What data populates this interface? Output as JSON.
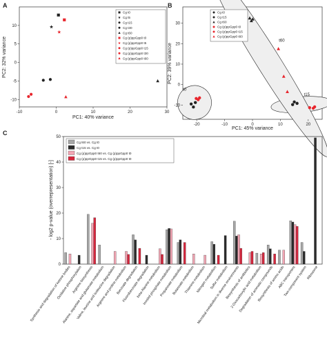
{
  "panels": {
    "A": {
      "letter": "A",
      "xlabel": "PC1: 40% variance",
      "ylabel": "PC2: 32% variance",
      "xlim": [
        -10,
        30
      ],
      "ylim": [
        -12,
        15
      ],
      "xticks": [
        -10,
        0,
        10,
        20,
        30
      ],
      "yticks": [
        -10,
        -5,
        0,
        5,
        10
      ],
      "legend_placement": "top-right",
      "series": [
        {
          "name": "Cg t0",
          "marker": "square",
          "color": "#222222",
          "points": [
            [
              0.6,
              12.8
            ]
          ]
        },
        {
          "name": "Cg t5",
          "marker": "star",
          "color": "#222222",
          "points": [
            [
              -1.3,
              9.6
            ]
          ]
        },
        {
          "name": "Cg t15",
          "marker": "circle",
          "color": "#222222",
          "points": [
            [
              -3.5,
              -4.8
            ]
          ]
        },
        {
          "name": "Cg t30",
          "marker": "circle",
          "color": "#222222",
          "points": [
            [
              -1.6,
              -4.6
            ]
          ]
        },
        {
          "name": "Cg t60",
          "marker": "triangle",
          "color": "#222222",
          "points": [
            [
              27.5,
              -5.0
            ]
          ]
        },
        {
          "name": "Cg (p)ppGpp0 t0",
          "marker": "square",
          "color": "#e8262d",
          "points": [
            [
              2.2,
              11.5
            ]
          ]
        },
        {
          "name": "Cg (p)ppGpp0 t5",
          "marker": "star",
          "color": "#e8262d",
          "points": [
            [
              0.8,
              8.2
            ]
          ]
        },
        {
          "name": "Cg (p)ppGpp0 t15",
          "marker": "circle",
          "color": "#e8262d",
          "points": [
            [
              -7.5,
              -9.2
            ]
          ]
        },
        {
          "name": "Cg (p)ppGpp0 t30",
          "marker": "circle",
          "color": "#e8262d",
          "points": [
            [
              -6.8,
              -8.6
            ]
          ]
        },
        {
          "name": "Cg (p)ppGpp0 t60",
          "marker": "triangle",
          "color": "#e8262d",
          "points": [
            [
              2.6,
              -9.3
            ]
          ]
        }
      ]
    },
    "B": {
      "letter": "B",
      "xlabel": "PC1: 45% variance",
      "ylabel": "PC2: 39% variance",
      "xlim": [
        -25,
        25
      ],
      "ylim": [
        -17,
        38
      ],
      "xticks": [
        -20,
        -10,
        0,
        10,
        20
      ],
      "yticks": [
        -10,
        0,
        10,
        20,
        30
      ],
      "legend_placement": "top-left",
      "series": [
        {
          "name": "Cg t0",
          "marker": "circle",
          "color": "#222222",
          "points": [
            [
              -22,
              -9.5
            ],
            [
              -21.2,
              -11
            ],
            [
              -20.5,
              -8.8
            ]
          ]
        },
        {
          "name": "Cg t15",
          "marker": "circle",
          "color": "#222222",
          "points": [
            [
              15,
              -8.5
            ],
            [
              16,
              -9.2
            ],
            [
              14.4,
              -9.8
            ]
          ]
        },
        {
          "name": "Cg t60",
          "marker": "triangle",
          "color": "#222222",
          "points": [
            [
              -1,
              32.5
            ],
            [
              0.1,
              32.0
            ],
            [
              -0.4,
              31.2
            ]
          ]
        },
        {
          "name": "Cg (p)ppGpp0 t0",
          "marker": "circle",
          "color": "#e8262d",
          "points": [
            [
              -20.2,
              -6.8
            ],
            [
              -19.5,
              -7.4
            ],
            [
              -19.0,
              -6.5
            ]
          ]
        },
        {
          "name": "Cg (p)ppGpp0 t15",
          "marker": "circle",
          "color": "#e8262d",
          "points": [
            [
              20.5,
              -11.3
            ],
            [
              21.8,
              -11.6
            ],
            [
              22.3,
              -10.9
            ]
          ]
        },
        {
          "name": "Cg (p)ppGpp0 t60",
          "marker": "triangle",
          "color": "#e8262d",
          "points": [
            [
              9.3,
              17.5
            ],
            [
              11.2,
              4.0
            ],
            [
              12.5,
              -3.5
            ]
          ]
        }
      ],
      "annotations": [
        {
          "text": "t60",
          "x": 10.5,
          "y": 21
        },
        {
          "text": "t0",
          "x": -24.3,
          "y": -3
        },
        {
          "text": "t15",
          "x": 19.5,
          "y": -5.5
        }
      ]
    },
    "C": {
      "letter": "C",
      "type": "bar",
      "ylabel": "- log2 p-value (overrepresentation) [-]",
      "ylim": [
        0,
        50
      ],
      "yticks": [
        0,
        10,
        20,
        30,
        40,
        50
      ],
      "legend": [
        {
          "name": "Cg t60 vs. Cg t0",
          "color": "#a6a6a6"
        },
        {
          "name": "Cg t15 vs. Cg t0",
          "color": "#2b2b2b"
        },
        {
          "name": "Cg (p)ppGpp0 t60 vs. Cg (p)ppGpp0 t0",
          "color": "#f2a6b4"
        },
        {
          "name": "Cg (p)ppGpp0 t15 vs. Cg (p)ppGpp0 t0",
          "color": "#d7263d"
        }
      ],
      "categories": [
        "Synthesis and degradation of ketone bodies",
        "Oxidative phosphorylation",
        "Arginine biosynthesis",
        "Alanine, aspartate and glutamate metabolism",
        "Valine, leucine and isoleucine degradation",
        "Arginine and proline metabolism",
        "Benzoate degradation",
        "Fluorobenzoate degradation",
        "beta-Alanine metabolism",
        "Inositol phosphate metabolism",
        "Propanoate metabolism",
        "Butanoate metabolism",
        "Thiamine metabolism",
        "Nitrogen metabolism",
        "Sulfur metabolism",
        "Microbial metabolism in diverse environments",
        "Biosynthesis of antibiotics",
        "2-Oxocarboxylic acid metabolism",
        "Degradation of aromatic compounds",
        "Biosynthesis of amino acids",
        "ABC transporters",
        "Two-component system",
        "Ribosome"
      ],
      "series": [
        {
          "name": "Cg t60 vs. Cg t0",
          "color": "#a6a6a6",
          "values": [
            4.5,
            0,
            19.5,
            7.5,
            0,
            0,
            11.5,
            0,
            0,
            13.5,
            8.5,
            0,
            0,
            8.8,
            0,
            16.8,
            0,
            4.3,
            7.5,
            5.5,
            17.0,
            8.5,
            0
          ]
        },
        {
          "name": "Cg t15 vs. Cg t0",
          "color": "#2b2b2b",
          "values": [
            0,
            3.5,
            0,
            0,
            0,
            0,
            9.5,
            3.5,
            0,
            14.0,
            9.5,
            0,
            0,
            7.8,
            11.2,
            11.0,
            0,
            0,
            6.0,
            0,
            16.5,
            5.0,
            49.5
          ]
        },
        {
          "name": "Cg (p)ppGpp0 t60 vs. Cg (p)ppGpp0 t0",
          "color": "#f2a6b4",
          "values": [
            4.0,
            0,
            16.0,
            0,
            5.0,
            5.0,
            0,
            0,
            6.0,
            13.8,
            0,
            4.0,
            3.5,
            0,
            0,
            11.5,
            4.5,
            4.0,
            0,
            5.5,
            15.5,
            0,
            0
          ]
        },
        {
          "name": "Cg (p)ppGpp0 t15 vs. Cg (p)ppGpp0 t0",
          "color": "#d7263d",
          "values": [
            0,
            0,
            18.2,
            0,
            0,
            3.8,
            6.2,
            0,
            3.8,
            0,
            8.5,
            0,
            0,
            3.5,
            0,
            6.2,
            5.0,
            4.5,
            4.0,
            0,
            14.8,
            0,
            0
          ]
        }
      ]
    }
  }
}
